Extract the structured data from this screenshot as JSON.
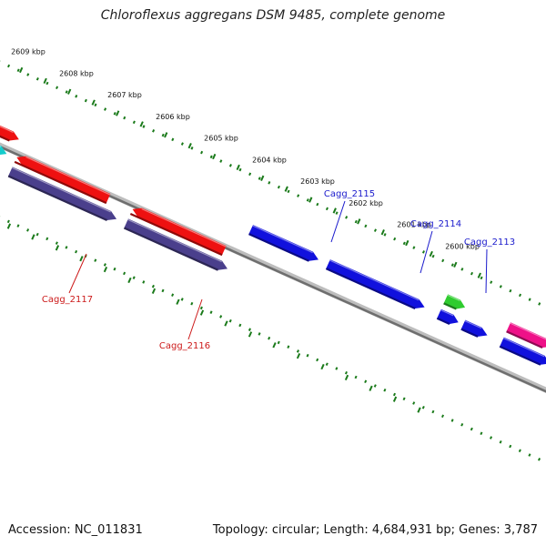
{
  "title": "Chloroflexus aggregans DSM 9485, complete genome",
  "footer": {
    "accession": "Accession: NC_011831",
    "summary": "Topology: circular; Length: 4,684,931 bp; Genes: 3,787"
  },
  "scale": {
    "unit": "kbp",
    "ticks": [
      {
        "kbp": 2609,
        "label": "2609 kbp"
      },
      {
        "kbp": 2608,
        "label": "2608 kbp"
      },
      {
        "kbp": 2607,
        "label": "2607 kbp"
      },
      {
        "kbp": 2606,
        "label": "2606 kbp"
      },
      {
        "kbp": 2605,
        "label": "2605 kbp"
      },
      {
        "kbp": 2604,
        "label": "2604 kbp"
      },
      {
        "kbp": 2603,
        "label": "2603 kbp"
      },
      {
        "kbp": 2602,
        "label": "2602 kbp"
      },
      {
        "kbp": 2601,
        "label": "2601 kbp"
      },
      {
        "kbp": 2600,
        "label": "2600 kbp"
      }
    ]
  },
  "gene_labels": [
    {
      "name": "Cagg_2115",
      "color": "#1a1acc",
      "gene_kbp": 2602.65
    },
    {
      "name": "Cagg_2114",
      "color": "#1a1acc",
      "gene_kbp": 2601.25
    },
    {
      "name": "Cagg_2113",
      "color": "#1a1acc",
      "gene_kbp": 2600.0
    },
    {
      "name": "Cagg_2117",
      "color": "#cc1a1a",
      "gene_kbp": 2607.75
    },
    {
      "name": "Cagg_2116",
      "color": "#cc1a1a",
      "gene_kbp": 2605.3
    }
  ],
  "colors": {
    "backbone": "#8c8c8c",
    "scale_ticks": "#1a7a1a",
    "gene_red": "#ee1111",
    "gene_blue": "#1111dd",
    "gene_slate": "#4a3f8c",
    "gene_cyan": "#14cccc",
    "gene_green": "#2fcc2f",
    "gene_pink": "#ee1188"
  }
}
